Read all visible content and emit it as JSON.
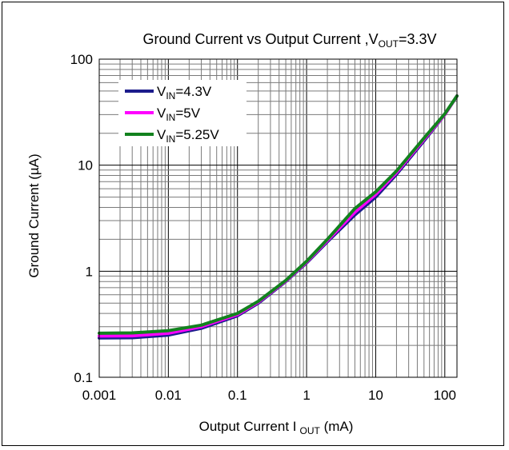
{
  "chart_data": {
    "type": "line",
    "title": {
      "main": "Ground Current vs Output Current ,V",
      "sub": "OUT",
      "suffix": "=3.3V"
    },
    "xlabel": {
      "main": "Output Current I",
      "sub": "OUT",
      "suffix": " (mA)"
    },
    "ylabel": "Ground Current (µA)",
    "xscale": "log",
    "yscale": "log",
    "xlim": [
      0.001,
      150
    ],
    "ylim": [
      0.1,
      100
    ],
    "x_ticks": [
      {
        "value": 0.001,
        "label": "0.001"
      },
      {
        "value": 0.01,
        "label": "0.01"
      },
      {
        "value": 0.1,
        "label": "0.1"
      },
      {
        "value": 1,
        "label": "1"
      },
      {
        "value": 10,
        "label": "10"
      },
      {
        "value": 100,
        "label": "100"
      }
    ],
    "y_ticks": [
      {
        "value": 0.1,
        "label": "0.1"
      },
      {
        "value": 1,
        "label": "1"
      },
      {
        "value": 10,
        "label": "10"
      },
      {
        "value": 100,
        "label": "100"
      }
    ],
    "grid": true,
    "legend_position": "top-left",
    "series": [
      {
        "name_main": "V",
        "name_sub": "IN",
        "name_suffix": "=4.3V",
        "color": "#1c1c8c",
        "x": [
          0.001,
          0.003,
          0.01,
          0.03,
          0.1,
          0.2,
          0.5,
          1,
          2,
          5,
          10,
          20,
          50,
          100,
          150
        ],
        "y": [
          0.235,
          0.236,
          0.25,
          0.29,
          0.38,
          0.5,
          0.8,
          1.2,
          1.9,
          3.4,
          5.0,
          8.2,
          17,
          30,
          45
        ]
      },
      {
        "name_main": "V",
        "name_sub": "IN",
        "name_suffix": "=5V",
        "color": "#ff00ff",
        "x": [
          0.001,
          0.003,
          0.01,
          0.03,
          0.1,
          0.2,
          0.5,
          1,
          2,
          5,
          10,
          20,
          50,
          100,
          150
        ],
        "y": [
          0.245,
          0.246,
          0.26,
          0.3,
          0.39,
          0.51,
          0.81,
          1.22,
          1.95,
          3.6,
          5.3,
          8.5,
          17.5,
          30,
          45
        ]
      },
      {
        "name_main": "V",
        "name_sub": "IN",
        "name_suffix": "=5.25V",
        "color": "#12821e",
        "x": [
          0.001,
          0.003,
          0.01,
          0.03,
          0.1,
          0.2,
          0.5,
          1,
          2,
          5,
          10,
          20,
          50,
          100,
          150
        ],
        "y": [
          0.26,
          0.262,
          0.275,
          0.31,
          0.4,
          0.52,
          0.82,
          1.24,
          2.0,
          3.9,
          5.6,
          8.8,
          18,
          30.5,
          45
        ]
      }
    ]
  }
}
